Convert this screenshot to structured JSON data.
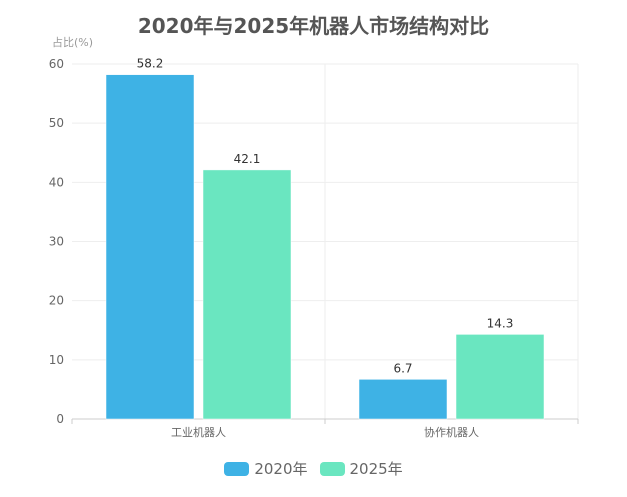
{
  "chart_data": {
    "type": "bar",
    "title": "2020年与2025年机器人市场结构对比",
    "ylabel": "占比(%)",
    "xlabel": "",
    "categories": [
      "工业机器人",
      "协作机器人"
    ],
    "series": [
      {
        "name": "2020年",
        "values": [
          58.2,
          6.7
        ],
        "color": "#3eb2e5"
      },
      {
        "name": "2025年",
        "values": [
          42.1,
          14.3
        ],
        "color": "#6ae6c0"
      }
    ],
    "ylim": [
      0,
      60
    ],
    "yticks": [
      0,
      10,
      20,
      30,
      40,
      50,
      60
    ],
    "grid": true,
    "legend_position": "bottom"
  }
}
